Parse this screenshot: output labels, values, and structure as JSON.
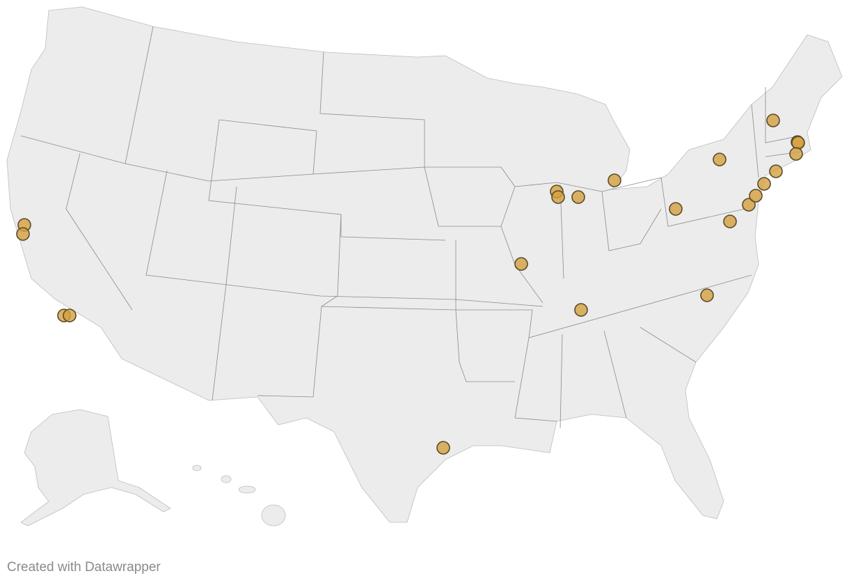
{
  "map": {
    "region": "United States",
    "marker_color": "#d4a03f",
    "marker_stroke": "#5a4a2a",
    "land_color": "#ececec",
    "border_color": "#8a8a8a"
  },
  "footer": {
    "credit": "Created with Datawrapper"
  }
}
